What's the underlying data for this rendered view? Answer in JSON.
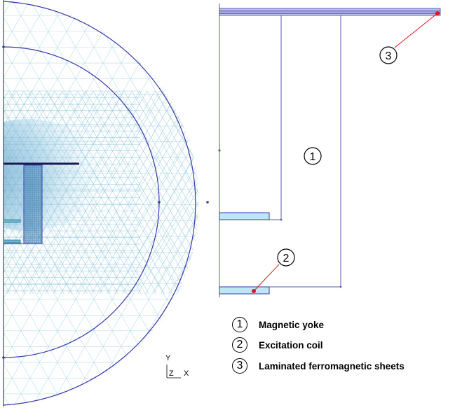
{
  "callouts": [
    {
      "number": "3"
    },
    {
      "number": "1"
    },
    {
      "number": "2"
    }
  ],
  "legend": [
    {
      "number": "1",
      "text": "Magnetic yoke"
    },
    {
      "number": "2",
      "text": "Excitation coil"
    },
    {
      "number": "3",
      "text": "Laminated ferromagnetic sheets"
    }
  ],
  "axes": {
    "y": "Y",
    "z": "Z",
    "x": "X"
  },
  "colors": {
    "mesh": "#b9dde8",
    "mesh_dense": "#3b7fb0",
    "boundary": "#3a3aa8",
    "outline": "#5a5aaa",
    "coil_fill": "#bfe6f5",
    "pointer": "#e0161d"
  }
}
